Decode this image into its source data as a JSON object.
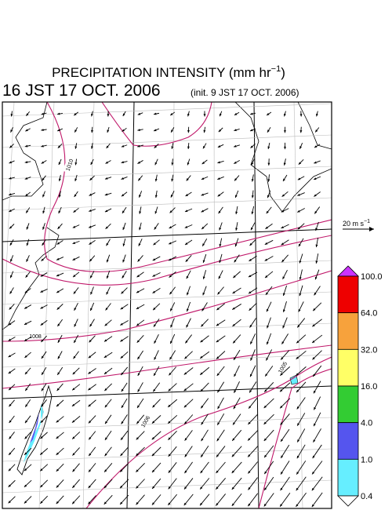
{
  "header": {
    "title_main": "PRECIPITATION INTENSITY (mm hr",
    "title_sup": "−1",
    "title_close": ")",
    "valid_time": "16 JST 17 OCT. 2006",
    "init_time": "(init. 9 JST 17 OCT. 2006)"
  },
  "wind_reference": {
    "label": "20 m s",
    "label_sup": "−1"
  },
  "contour_labels": [
    "1010",
    "1008",
    "1006",
    "1005"
  ],
  "colorbar": {
    "labels": [
      "100.0",
      "64.0",
      "32.0",
      "16.0",
      "4.0",
      "1.0",
      "0.4"
    ],
    "colors": [
      "#ee0000",
      "#f7a23c",
      "#ffff66",
      "#33cc33",
      "#5555ee",
      "#66eeff"
    ],
    "over_color": "#cc33ff",
    "under_color": "#ffffff"
  }
}
